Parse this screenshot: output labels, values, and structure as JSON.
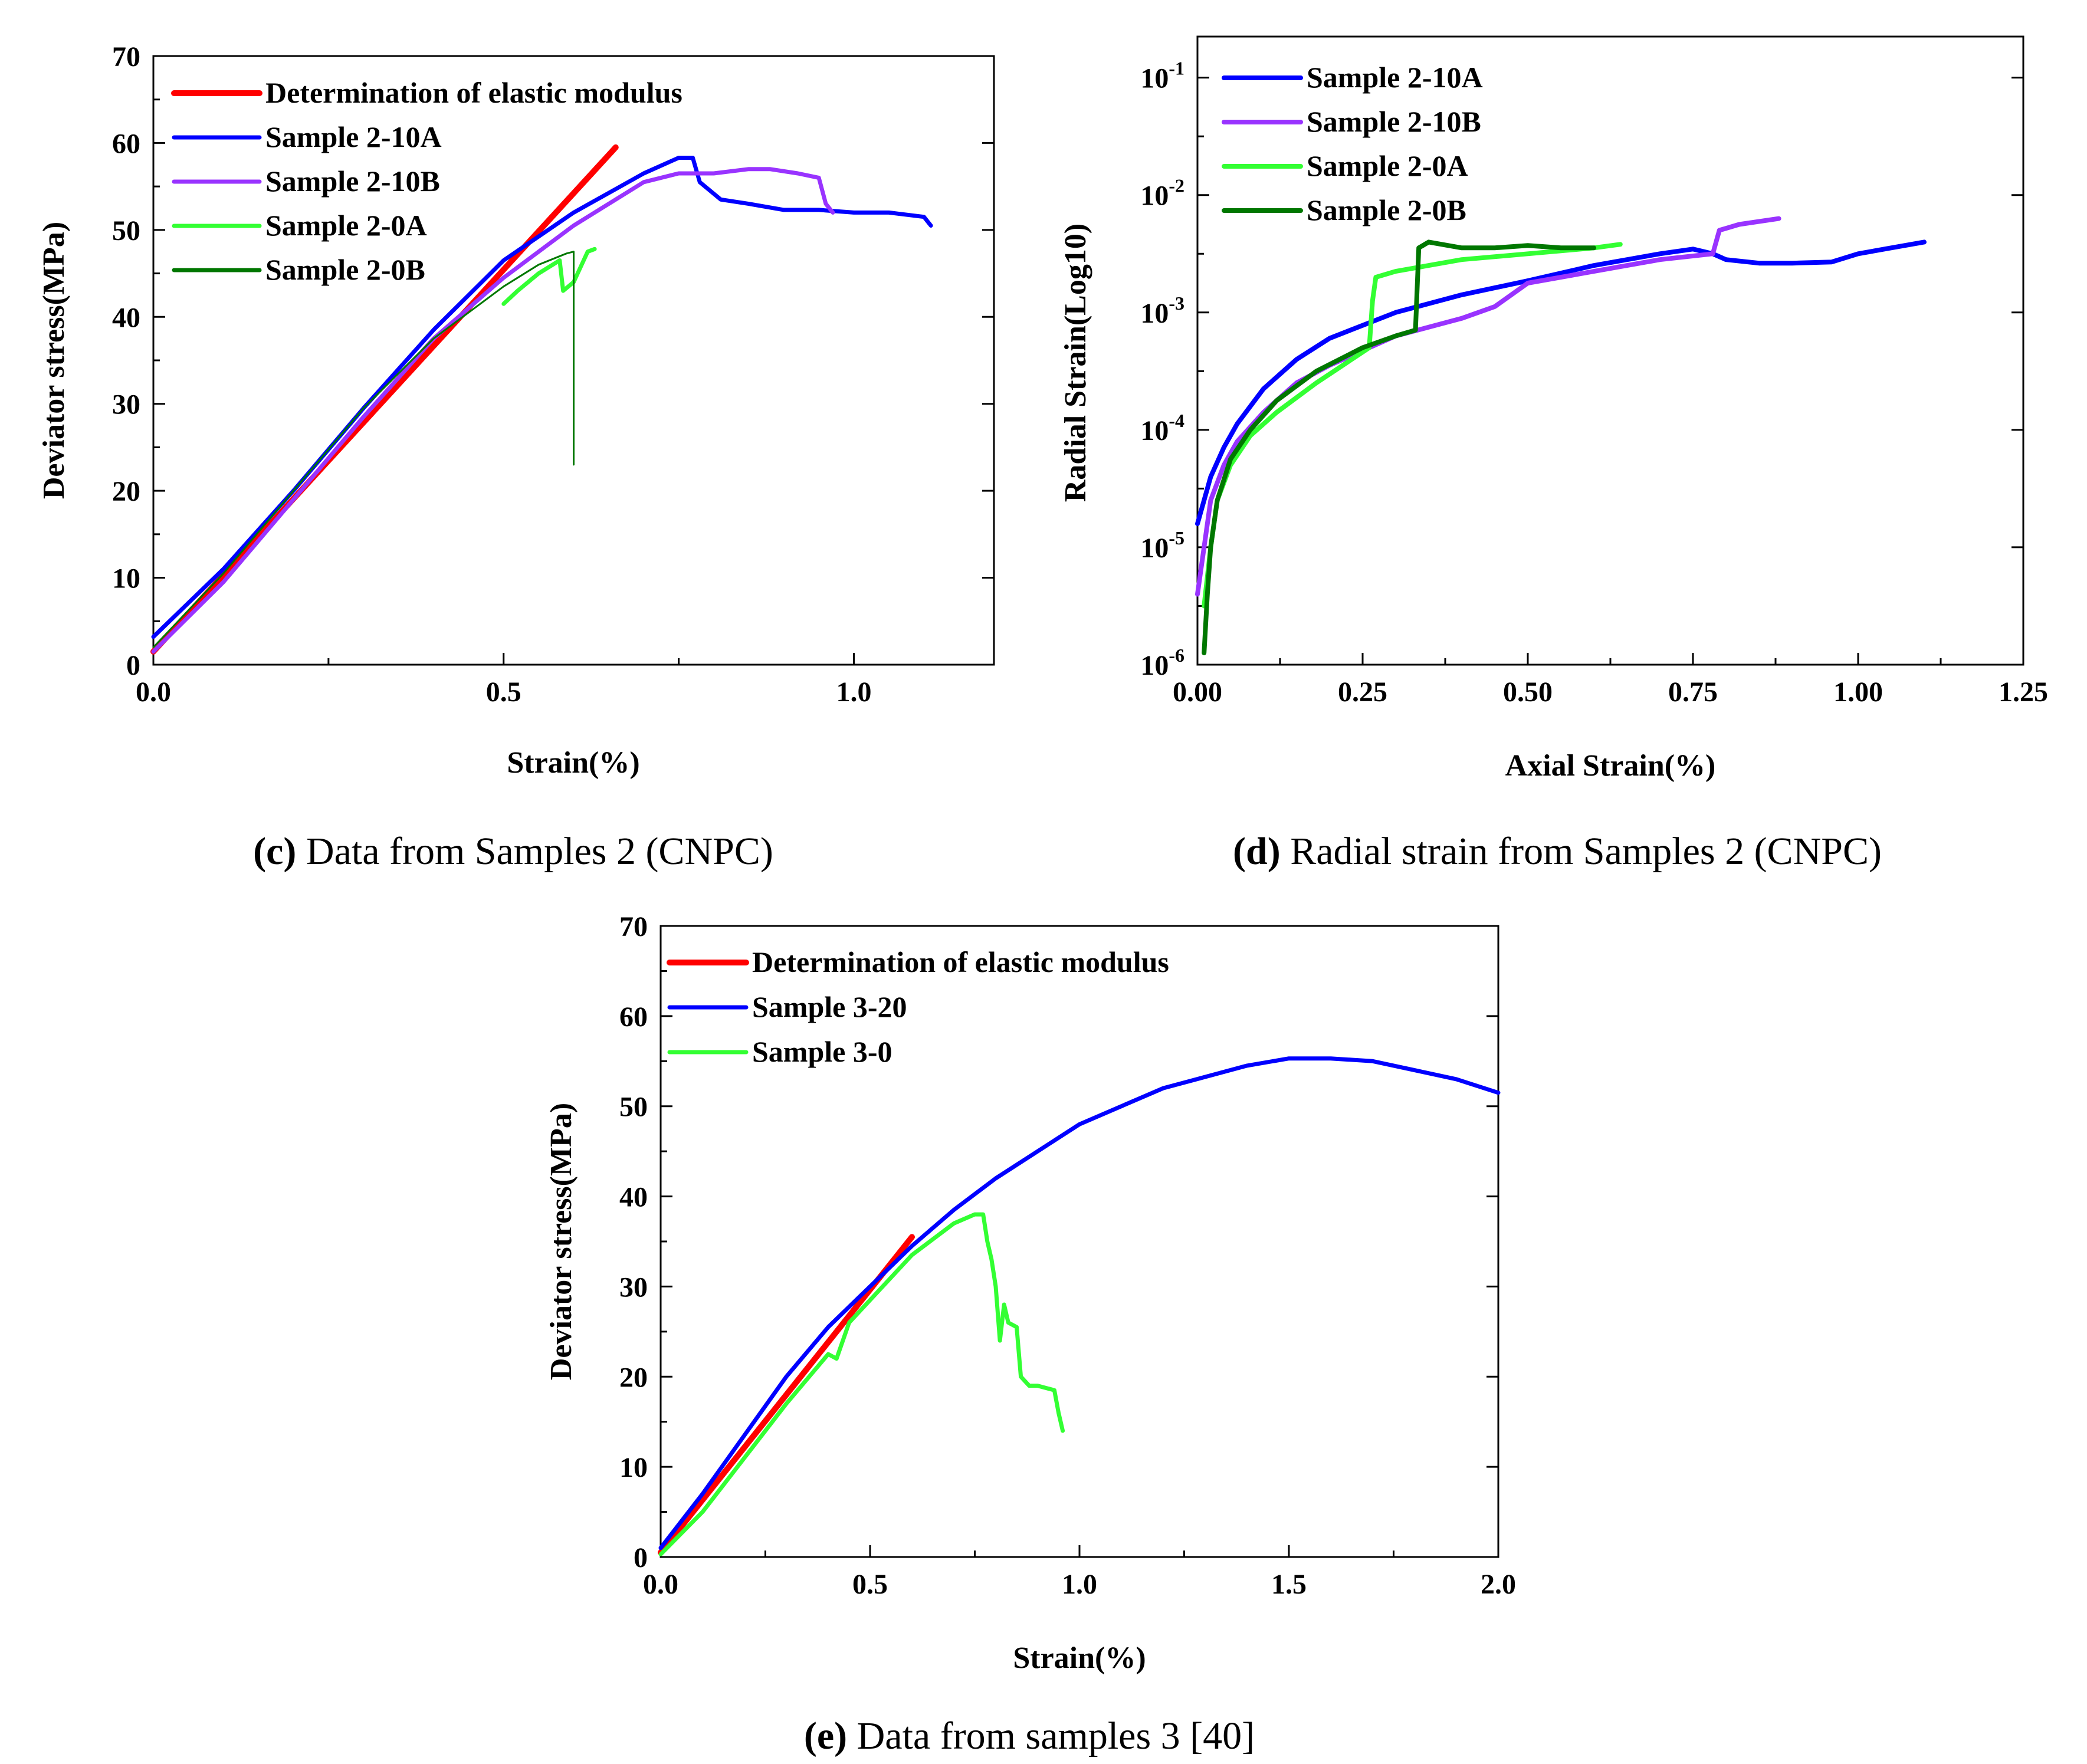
{
  "chart_data": [
    {
      "id": "c",
      "type": "line",
      "caption_label": "(c)",
      "caption_text": " Data from Samples 2 (CNPC)",
      "xlabel": "Strain(%)",
      "ylabel": "Deviator stress(MPa)",
      "xlim": [
        0,
        1.2
      ],
      "ylim": [
        0,
        70
      ],
      "xticks": [
        0.0,
        0.5,
        1.0
      ],
      "xtick_labels": [
        "0.0",
        "0.5",
        "1.0"
      ],
      "yticks": [
        0,
        10,
        20,
        30,
        40,
        50,
        60,
        70
      ],
      "ytick_labels": [
        "0",
        "10",
        "20",
        "30",
        "40",
        "50",
        "60",
        "70"
      ],
      "legend_position": "top-left",
      "series": [
        {
          "name": "Determination of elastic modulus",
          "color": "#ff0000",
          "width": 10,
          "points": [
            [
              0.0,
              1.5
            ],
            [
              0.66,
              59.5
            ]
          ]
        },
        {
          "name": "Sample 2-10A",
          "color": "#0000ff",
          "width": 7,
          "points": [
            [
              0.0,
              3.2
            ],
            [
              0.1,
              11.0
            ],
            [
              0.2,
              20.0
            ],
            [
              0.3,
              29.5
            ],
            [
              0.4,
              38.5
            ],
            [
              0.5,
              46.5
            ],
            [
              0.6,
              52.0
            ],
            [
              0.7,
              56.5
            ],
            [
              0.75,
              58.3
            ],
            [
              0.77,
              58.3
            ],
            [
              0.78,
              55.5
            ],
            [
              0.81,
              53.5
            ],
            [
              0.85,
              53.0
            ],
            [
              0.9,
              52.3
            ],
            [
              0.95,
              52.3
            ],
            [
              1.0,
              52.0
            ],
            [
              1.05,
              52.0
            ],
            [
              1.1,
              51.5
            ],
            [
              1.11,
              50.5
            ]
          ]
        },
        {
          "name": "Sample 2-10B",
          "color": "#9933ff",
          "width": 7,
          "points": [
            [
              0.0,
              1.5
            ],
            [
              0.1,
              9.5
            ],
            [
              0.2,
              19.0
            ],
            [
              0.3,
              28.5
            ],
            [
              0.4,
              37.5
            ],
            [
              0.5,
              44.5
            ],
            [
              0.6,
              50.5
            ],
            [
              0.7,
              55.5
            ],
            [
              0.75,
              56.5
            ],
            [
              0.8,
              56.5
            ],
            [
              0.85,
              57.0
            ],
            [
              0.88,
              57.0
            ],
            [
              0.92,
              56.5
            ],
            [
              0.95,
              56.0
            ],
            [
              0.96,
              53.0
            ],
            [
              0.97,
              52.0
            ]
          ]
        },
        {
          "name": "Sample 2-0A",
          "color": "#33ff33",
          "width": 7,
          "points": [
            [
              0.5,
              41.5
            ],
            [
              0.52,
              43.0
            ],
            [
              0.55,
              45.0
            ],
            [
              0.58,
              46.5
            ],
            [
              0.585,
              43.0
            ],
            [
              0.6,
              44.0
            ],
            [
              0.62,
              47.5
            ],
            [
              0.63,
              47.8
            ]
          ]
        },
        {
          "name": "Sample 2-0B",
          "color": "#007700",
          "width": 3,
          "points": [
            [
              0.0,
              2.0
            ],
            [
              0.1,
              10.5
            ],
            [
              0.2,
              20.0
            ],
            [
              0.3,
              29.5
            ],
            [
              0.4,
              37.5
            ],
            [
              0.5,
              43.5
            ],
            [
              0.55,
              46.0
            ],
            [
              0.59,
              47.3
            ],
            [
              0.6,
              47.5
            ],
            [
              0.6,
              23.0
            ]
          ]
        }
      ]
    },
    {
      "id": "d",
      "type": "line",
      "caption_label": "(d)",
      "caption_text": " Radial strain from Samples 2 (CNPC)",
      "xlabel": "Axial Strain(%)",
      "ylabel": "Radial Strain(Log10)",
      "xlim": [
        0,
        1.25
      ],
      "ylim_log10": [
        -6,
        -0.65
      ],
      "xticks": [
        0.0,
        0.25,
        0.5,
        0.75,
        1.0,
        1.25
      ],
      "xtick_labels": [
        "0.00",
        "0.25",
        "0.50",
        "0.75",
        "1.00",
        "1.25"
      ],
      "yticks_exp": [
        -6,
        -5,
        -4,
        -3,
        -2,
        -1
      ],
      "ytick_labels": [
        "10",
        "10",
        "10",
        "10",
        "10",
        "10"
      ],
      "ytick_exponents": [
        "-6",
        "-5",
        "-4",
        "-3",
        "-2",
        "-1"
      ],
      "legend_position": "top-left",
      "series": [
        {
          "name": "Sample 2-10A",
          "color": "#0000ff",
          "width": 8,
          "points": [
            [
              0.0,
              -4.8
            ],
            [
              0.01,
              -4.6
            ],
            [
              0.02,
              -4.4
            ],
            [
              0.04,
              -4.15
            ],
            [
              0.06,
              -3.95
            ],
            [
              0.1,
              -3.65
            ],
            [
              0.15,
              -3.4
            ],
            [
              0.2,
              -3.22
            ],
            [
              0.3,
              -3.0
            ],
            [
              0.4,
              -2.85
            ],
            [
              0.5,
              -2.73
            ],
            [
              0.6,
              -2.6
            ],
            [
              0.7,
              -2.5
            ],
            [
              0.75,
              -2.46
            ],
            [
              0.78,
              -2.5
            ],
            [
              0.8,
              -2.55
            ],
            [
              0.85,
              -2.58
            ],
            [
              0.9,
              -2.58
            ],
            [
              0.96,
              -2.57
            ],
            [
              1.0,
              -2.5
            ],
            [
              1.05,
              -2.45
            ],
            [
              1.1,
              -2.4
            ]
          ]
        },
        {
          "name": "Sample 2-10B",
          "color": "#9933ff",
          "width": 8,
          "points": [
            [
              0.0,
              -5.4
            ],
            [
              0.01,
              -5.0
            ],
            [
              0.02,
              -4.6
            ],
            [
              0.04,
              -4.3
            ],
            [
              0.06,
              -4.1
            ],
            [
              0.1,
              -3.85
            ],
            [
              0.15,
              -3.6
            ],
            [
              0.2,
              -3.45
            ],
            [
              0.3,
              -3.2
            ],
            [
              0.4,
              -3.05
            ],
            [
              0.45,
              -2.95
            ],
            [
              0.5,
              -2.75
            ],
            [
              0.6,
              -2.65
            ],
            [
              0.7,
              -2.55
            ],
            [
              0.78,
              -2.5
            ],
            [
              0.79,
              -2.3
            ],
            [
              0.82,
              -2.25
            ],
            [
              0.88,
              -2.2
            ]
          ]
        },
        {
          "name": "Sample 2-0A",
          "color": "#33ff33",
          "width": 8,
          "points": [
            [
              0.01,
              -5.5
            ],
            [
              0.02,
              -5.0
            ],
            [
              0.03,
              -4.6
            ],
            [
              0.05,
              -4.3
            ],
            [
              0.08,
              -4.05
            ],
            [
              0.12,
              -3.85
            ],
            [
              0.18,
              -3.6
            ],
            [
              0.22,
              -3.45
            ],
            [
              0.26,
              -3.3
            ],
            [
              0.265,
              -2.9
            ],
            [
              0.27,
              -2.7
            ],
            [
              0.3,
              -2.65
            ],
            [
              0.4,
              -2.55
            ],
            [
              0.5,
              -2.5
            ],
            [
              0.6,
              -2.45
            ],
            [
              0.64,
              -2.42
            ]
          ]
        },
        {
          "name": "Sample 2-0B",
          "color": "#007700",
          "width": 8,
          "points": [
            [
              0.01,
              -5.9
            ],
            [
              0.015,
              -5.4
            ],
            [
              0.02,
              -5.0
            ],
            [
              0.03,
              -4.6
            ],
            [
              0.05,
              -4.25
            ],
            [
              0.08,
              -4.0
            ],
            [
              0.12,
              -3.75
            ],
            [
              0.18,
              -3.5
            ],
            [
              0.25,
              -3.3
            ],
            [
              0.3,
              -3.2
            ],
            [
              0.33,
              -3.15
            ],
            [
              0.335,
              -2.45
            ],
            [
              0.35,
              -2.4
            ],
            [
              0.4,
              -2.45
            ],
            [
              0.45,
              -2.45
            ],
            [
              0.5,
              -2.43
            ],
            [
              0.55,
              -2.45
            ],
            [
              0.6,
              -2.45
            ]
          ]
        }
      ]
    },
    {
      "id": "e",
      "type": "line",
      "caption_label": "(e)",
      "caption_text": " Data from samples 3 [40]",
      "xlabel": "Strain(%)",
      "ylabel": "Deviator stress(MPa)",
      "xlim": [
        0,
        2.0
      ],
      "ylim": [
        0,
        70
      ],
      "xticks": [
        0.0,
        0.5,
        1.0,
        1.5,
        2.0
      ],
      "xtick_labels": [
        "0.0",
        "0.5",
        "1.0",
        "1.5",
        "2.0"
      ],
      "yticks": [
        0,
        10,
        20,
        30,
        40,
        50,
        60,
        70
      ],
      "ytick_labels": [
        "0",
        "10",
        "20",
        "30",
        "40",
        "50",
        "60",
        "70"
      ],
      "legend_position": "top-left",
      "series": [
        {
          "name": "Determination of elastic modulus",
          "color": "#ff0000",
          "width": 10,
          "points": [
            [
              0.0,
              0.5
            ],
            [
              0.6,
              35.5
            ]
          ]
        },
        {
          "name": "Sample 3-20",
          "color": "#0000ff",
          "width": 7,
          "points": [
            [
              0.0,
              1.0
            ],
            [
              0.1,
              7.0
            ],
            [
              0.2,
              13.5
            ],
            [
              0.3,
              20.0
            ],
            [
              0.4,
              25.5
            ],
            [
              0.5,
              30.0
            ],
            [
              0.6,
              34.5
            ],
            [
              0.7,
              38.5
            ],
            [
              0.8,
              42.0
            ],
            [
              1.0,
              48.0
            ],
            [
              1.2,
              52.0
            ],
            [
              1.4,
              54.5
            ],
            [
              1.5,
              55.3
            ],
            [
              1.6,
              55.3
            ],
            [
              1.7,
              55.0
            ],
            [
              1.8,
              54.0
            ],
            [
              1.9,
              53.0
            ],
            [
              2.0,
              51.5
            ]
          ]
        },
        {
          "name": "Sample 3-0",
          "color": "#33ff33",
          "width": 7,
          "points": [
            [
              0.0,
              0.3
            ],
            [
              0.1,
              5.0
            ],
            [
              0.2,
              11.0
            ],
            [
              0.3,
              17.0
            ],
            [
              0.4,
              22.5
            ],
            [
              0.42,
              22.0
            ],
            [
              0.45,
              26.0
            ],
            [
              0.5,
              28.5
            ],
            [
              0.6,
              33.5
            ],
            [
              0.7,
              37.0
            ],
            [
              0.75,
              38.0
            ],
            [
              0.77,
              38.0
            ],
            [
              0.78,
              35.0
            ],
            [
              0.79,
              33.0
            ],
            [
              0.8,
              30.0
            ],
            [
              0.81,
              24.0
            ],
            [
              0.82,
              28.0
            ],
            [
              0.83,
              26.0
            ],
            [
              0.85,
              25.5
            ],
            [
              0.86,
              20.0
            ],
            [
              0.88,
              19.0
            ],
            [
              0.9,
              19.0
            ],
            [
              0.94,
              18.5
            ],
            [
              0.95,
              16.0
            ],
            [
              0.96,
              14.0
            ]
          ]
        }
      ]
    }
  ]
}
